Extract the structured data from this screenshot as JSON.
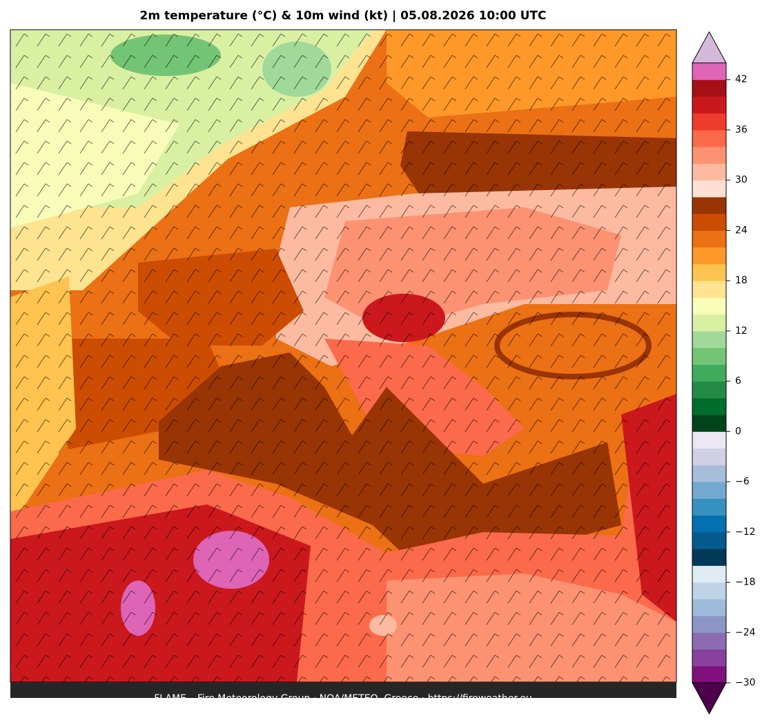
{
  "title": "2m temperature (°C) & 10m wind (kt)  |  05.08.2026 10:00 UTC",
  "footer": "FLAME – Fire Meteorology Group · NOA/METEO, Greece · https://fireweather.eu",
  "colorbar": {
    "clim": [
      -30,
      44
    ],
    "ticks": [
      {
        "value": -30,
        "label": "−30"
      },
      {
        "value": -24,
        "label": "−24"
      },
      {
        "value": -18,
        "label": "−18"
      },
      {
        "value": -12,
        "label": "−12"
      },
      {
        "value": -6,
        "label": "−6"
      },
      0,
      6,
      12,
      18,
      24,
      30,
      36,
      42
    ],
    "colors": [
      "#810f7c",
      "#88419d",
      "#8c6bb1",
      "#8c96c6",
      "#9ebcda",
      "#bfd3e6",
      "#e0ecf4",
      "#023858",
      "#045a8d",
      "#0570b0",
      "#3690c0",
      "#74a9cf",
      "#a6bddb",
      "#d0d1e6",
      "#ece7f2",
      "#00441b",
      "#006d2c",
      "#238b45",
      "#41ab5d",
      "#74c476",
      "#a1d99b",
      "#d9f0a3",
      "#f7fcb9",
      "#fee391",
      "#fec44f",
      "#fe9929",
      "#ec7014",
      "#cc4c02",
      "#993404",
      "#fee0d2",
      "#fcbba1",
      "#fc9272",
      "#fb6a4a",
      "#ef3b2c",
      "#cb181d",
      "#a50f15",
      "#de64b6"
    ],
    "over_color": "#d4b9da",
    "under_color": "#4d004b"
  }
}
